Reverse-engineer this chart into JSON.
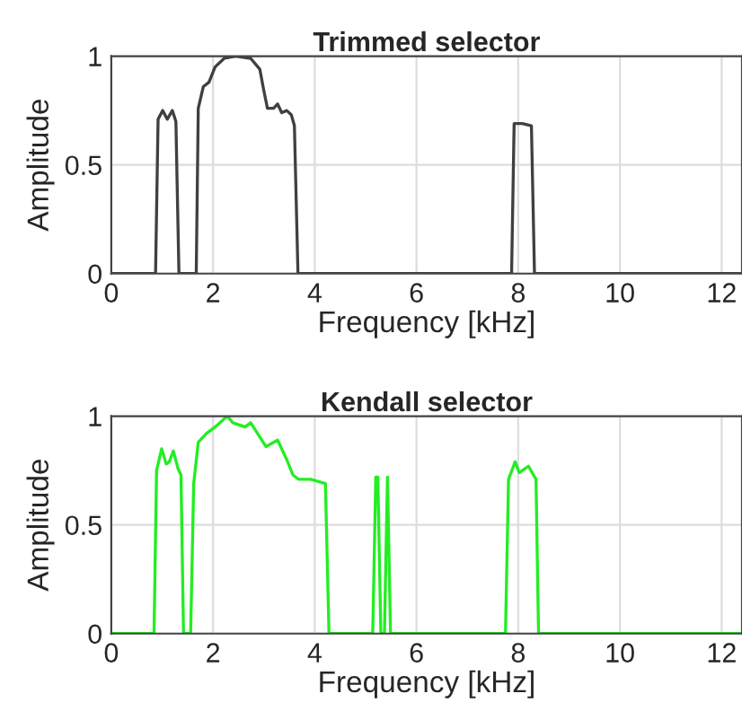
{
  "chart_data": [
    {
      "type": "line",
      "title": "Trimmed selector",
      "xlabel": "Frequency [kHz]",
      "ylabel": "Amplitude",
      "xlim": [
        0,
        12.4
      ],
      "ylim": [
        0,
        1
      ],
      "xticks": [
        0,
        2,
        4,
        6,
        8,
        10,
        12
      ],
      "yticks": [
        0,
        0.5,
        1
      ],
      "grid": true,
      "series": [
        {
          "color": "#404040",
          "x": [
            0,
            0.87,
            0.92,
            1.01,
            1.1,
            1.2,
            1.27,
            1.33,
            1.67,
            1.71,
            1.81,
            1.92,
            2.04,
            2.22,
            2.45,
            2.74,
            2.92,
            3.0,
            3.07,
            3.19,
            3.27,
            3.35,
            3.45,
            3.54,
            3.6,
            3.67,
            7.87,
            7.92,
            8.08,
            8.26,
            8.32,
            12.4
          ],
          "values": [
            0,
            0,
            0.71,
            0.75,
            0.71,
            0.75,
            0.7,
            0,
            0,
            0.76,
            0.86,
            0.88,
            0.95,
            0.99,
            1.0,
            0.99,
            0.94,
            0.84,
            0.76,
            0.76,
            0.78,
            0.74,
            0.75,
            0.73,
            0.68,
            0,
            0,
            0.69,
            0.69,
            0.68,
            0,
            0
          ]
        }
      ]
    },
    {
      "type": "line",
      "title": "Kendall selector",
      "xlabel": "Frequency [kHz]",
      "ylabel": "Amplitude",
      "xlim": [
        0,
        12.4
      ],
      "ylim": [
        0,
        1
      ],
      "xticks": [
        0,
        2,
        4,
        6,
        8,
        10,
        12
      ],
      "yticks": [
        0,
        0.5,
        1
      ],
      "grid": true,
      "series": [
        {
          "color": "#22ee22",
          "x": [
            0,
            0.84,
            0.89,
            0.99,
            1.08,
            1.14,
            1.22,
            1.31,
            1.37,
            1.42,
            1.56,
            1.62,
            1.71,
            1.87,
            2.04,
            2.28,
            2.39,
            2.63,
            2.74,
            3.04,
            3.27,
            3.45,
            3.57,
            3.68,
            3.92,
            4.21,
            4.28,
            5.14,
            5.2,
            5.24,
            5.3,
            5.37,
            5.43,
            5.49,
            7.75,
            7.81,
            7.94,
            8.02,
            8.2,
            8.35,
            8.4,
            12.4
          ],
          "values": [
            0,
            0,
            0.75,
            0.85,
            0.78,
            0.79,
            0.84,
            0.76,
            0.73,
            0,
            0,
            0.69,
            0.88,
            0.92,
            0.95,
            1.0,
            0.97,
            0.95,
            0.97,
            0.86,
            0.89,
            0.8,
            0.73,
            0.71,
            0.71,
            0.69,
            0,
            0,
            0.72,
            0.72,
            0,
            0,
            0.72,
            0,
            0,
            0.71,
            0.79,
            0.74,
            0.77,
            0.71,
            0,
            0
          ]
        }
      ]
    }
  ]
}
